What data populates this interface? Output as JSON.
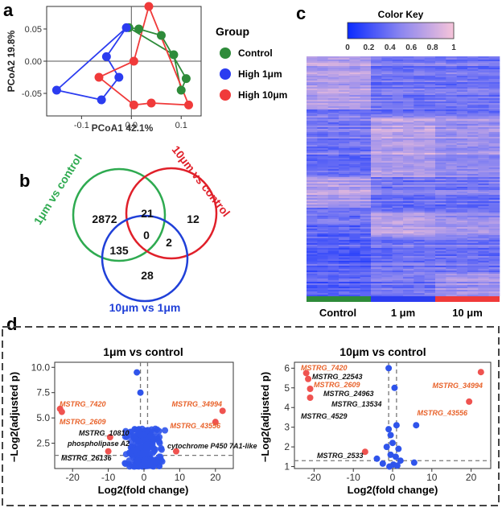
{
  "panels": [
    "a",
    "b",
    "c",
    "d"
  ],
  "colors": {
    "control": "#2e8b3a",
    "high1": "#2b3cf0",
    "high10": "#f03a3a",
    "gene_orange": "#e8622a",
    "sig_red": "#ef5350",
    "ns_blue": "#2f54eb"
  },
  "chart_data": [
    {
      "id": "a",
      "type": "scatter",
      "xlabel": "PCoA1 42.1%",
      "ylabel": "PCoA2 19.8%",
      "xlim": [
        -0.17,
        0.14
      ],
      "ylim": [
        -0.085,
        0.085
      ],
      "xticks": [
        -0.1,
        0.0,
        0.1
      ],
      "xtick_labels": [
        "-0.1",
        "0.0",
        "0.1"
      ],
      "yticks": [
        0.05,
        0.0,
        -0.05
      ],
      "ytick_labels": [
        "0.05",
        "0.00",
        "-0.05"
      ],
      "legend_title": "Group",
      "series": [
        {
          "name": "Control",
          "color": "#2e8b3a",
          "points": [
            [
              -0.005,
              0.052
            ],
            [
              0.015,
              0.05
            ],
            [
              0.06,
              0.04
            ],
            [
              0.085,
              0.01
            ],
            [
              0.11,
              -0.027
            ],
            [
              0.1,
              -0.045
            ]
          ],
          "hull": [
            [
              -0.005,
              0.052
            ],
            [
              0.015,
              0.05
            ],
            [
              0.06,
              0.04
            ],
            [
              0.11,
              -0.027
            ],
            [
              0.1,
              -0.045
            ],
            [
              0.085,
              0.01
            ],
            [
              -0.005,
              0.052
            ]
          ]
        },
        {
          "name": "High 1μm",
          "color": "#2b3cf0",
          "points": [
            [
              -0.15,
              -0.045
            ],
            [
              -0.06,
              -0.06
            ],
            [
              -0.025,
              -0.025
            ],
            [
              -0.05,
              0.007
            ],
            [
              -0.01,
              0.052
            ]
          ],
          "hull": [
            [
              -0.15,
              -0.045
            ],
            [
              -0.01,
              0.052
            ],
            [
              -0.05,
              0.007
            ],
            [
              -0.025,
              -0.025
            ],
            [
              -0.06,
              -0.06
            ],
            [
              -0.15,
              -0.045
            ]
          ]
        },
        {
          "name": "High 10μm",
          "color": "#f03a3a",
          "points": [
            [
              0.035,
              0.085
            ],
            [
              -0.065,
              -0.025
            ],
            [
              0.005,
              -0.068
            ],
            [
              0.04,
              -0.065
            ],
            [
              0.115,
              -0.068
            ],
            [
              0.005,
              0.0
            ]
          ],
          "hull": [
            [
              0.035,
              0.085
            ],
            [
              0.115,
              -0.068
            ],
            [
              0.04,
              -0.065
            ],
            [
              0.005,
              -0.068
            ],
            [
              -0.065,
              -0.025
            ],
            [
              0.005,
              0.0
            ],
            [
              0.035,
              0.085
            ]
          ]
        }
      ]
    },
    {
      "id": "b",
      "type": "venn",
      "sets": [
        {
          "name": "1μm vs control",
          "color": "#2eaa50"
        },
        {
          "name": "10μm vs control",
          "color": "#e0202a"
        },
        {
          "name": "10μm vs 1μm",
          "color": "#2040d8"
        }
      ],
      "regions": {
        "only_1": "2872",
        "only_10": "12",
        "only_10v1": "28",
        "1_and_10": "21",
        "1_and_10v1": "135",
        "10_and_10v1": "2",
        "all": "0"
      }
    },
    {
      "id": "c",
      "type": "heatmap",
      "color_key_title": "Color Key",
      "color_key_ticks": [
        "0",
        "0.2",
        "0.4",
        "0.6",
        "0.8",
        "1"
      ],
      "column_groups": [
        {
          "name": "Control",
          "color": "#2e8b3a"
        },
        {
          "name": "1 μm",
          "color": "#2b3cf0"
        },
        {
          "name": "10 μm",
          "color": "#f03a3a"
        }
      ]
    },
    {
      "id": "d1",
      "type": "scatter",
      "title": "1μm vs control",
      "xlabel": "Log2(fold change)",
      "ylabel": "−Log2(adjusted p)",
      "xlim": [
        -25,
        25
      ],
      "ylim": [
        0,
        10.5
      ],
      "xticks": [
        -20,
        -10,
        0,
        10,
        20
      ],
      "yticks": [
        2.5,
        5.0,
        7.5,
        10.0
      ],
      "ytick_labels": [
        "2.5",
        "5.0",
        "7.5",
        "10.0"
      ],
      "labels": [
        {
          "text": "MSTRG_7420",
          "x": -23.5,
          "y": 5.9,
          "kind": "orange"
        },
        {
          "text": "MSTRG_2609",
          "x": -23.5,
          "y": 5.5,
          "kind": "orange"
        },
        {
          "text": "MSTRG_10810",
          "x": -10,
          "y": 3.2,
          "kind": "black"
        },
        {
          "text": "phospholipase A2",
          "x": -10,
          "y": 3.0,
          "kind": "black"
        },
        {
          "text": "MSTRG_26136",
          "x": -10,
          "y": 1.7,
          "kind": "black"
        },
        {
          "text": "MSTRG_34994",
          "x": 22,
          "y": 5.7,
          "kind": "orange"
        },
        {
          "text": "MSTRG_43556",
          "x": 20,
          "y": 4.6,
          "kind": "orange"
        },
        {
          "text": "cytochrome P450 7A1-like",
          "x": 9,
          "y": 1.7,
          "kind": "black"
        }
      ],
      "red_points": [
        [
          -23.5,
          5.9
        ],
        [
          -23.0,
          5.6
        ],
        [
          -9.5,
          3.1
        ],
        [
          -10,
          1.7
        ],
        [
          22,
          5.7
        ],
        [
          20,
          4.6
        ],
        [
          9,
          1.7
        ]
      ],
      "blue_points_note": "dense cluster near x=0"
    },
    {
      "id": "d2",
      "type": "scatter",
      "title": "10μm vs control",
      "xlabel": "Log2(fold change)",
      "ylabel": "−Log2(adjusted p)",
      "xlim": [
        -25,
        25
      ],
      "ylim": [
        0.9,
        6.3
      ],
      "xticks": [
        -20,
        -10,
        0,
        10,
        20
      ],
      "yticks": [
        1,
        2,
        3,
        4,
        5,
        6
      ],
      "labels": [
        {
          "text": "MSTRG_7420",
          "x": -22,
          "y": 5.75,
          "kind": "orange"
        },
        {
          "text": "MSTRG_22543",
          "x": -22,
          "y": 5.7,
          "kind": "black"
        },
        {
          "text": "MSTRG_2609",
          "x": -21,
          "y": 5.3,
          "kind": "orange"
        },
        {
          "text": "MSTRG_24963",
          "x": -21,
          "y": 4.9,
          "kind": "black"
        },
        {
          "text": "MSTRG_13534",
          "x": -20,
          "y": 4.5,
          "kind": "black"
        },
        {
          "text": "MSTRG_4529",
          "x": -21,
          "y": 3.9,
          "kind": "black"
        },
        {
          "text": "MSTRG_2533",
          "x": -7,
          "y": 1.7,
          "kind": "black"
        },
        {
          "text": "MSTRG_34994",
          "x": 22.5,
          "y": 5.8,
          "kind": "orange"
        },
        {
          "text": "MSTRG_43556",
          "x": 19.5,
          "y": 4.3,
          "kind": "orange"
        }
      ],
      "red_points": [
        [
          -22,
          5.75
        ],
        [
          -21.5,
          5.45
        ],
        [
          -21,
          4.95
        ],
        [
          -21,
          4.5
        ],
        [
          -7,
          1.75
        ],
        [
          22.5,
          5.8
        ],
        [
          19.5,
          4.3
        ]
      ],
      "blue_points": [
        [
          -1,
          6.0
        ],
        [
          0.5,
          5.0
        ],
        [
          1,
          3.1
        ],
        [
          -1,
          2.9
        ],
        [
          6,
          3.1
        ],
        [
          -0.5,
          2.6
        ],
        [
          0,
          2.2
        ],
        [
          -1.5,
          2.0
        ],
        [
          1.5,
          1.9
        ],
        [
          -0.5,
          1.6
        ],
        [
          0.8,
          1.5
        ],
        [
          -4,
          1.4
        ],
        [
          2,
          1.3
        ],
        [
          5.5,
          1.2
        ],
        [
          -2.5,
          1.15
        ],
        [
          0.2,
          1.1
        ],
        [
          1.2,
          1.05
        ],
        [
          -0.8,
          1.0
        ]
      ]
    }
  ]
}
